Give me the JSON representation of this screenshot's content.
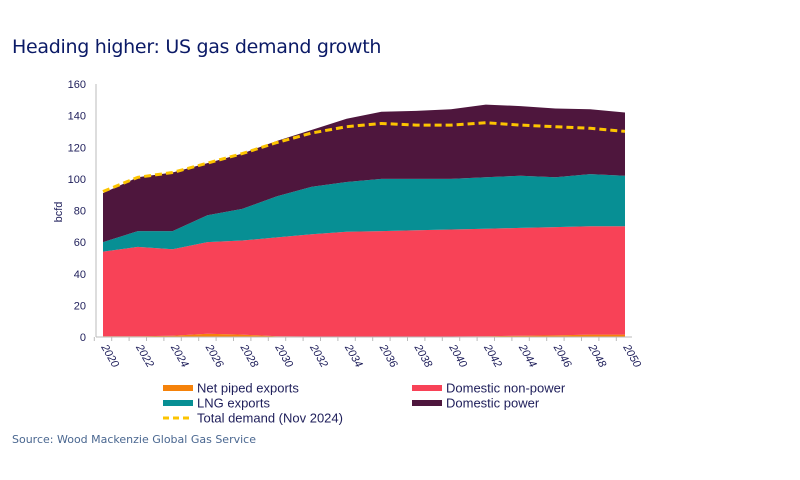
{
  "title": "Heading higher: US gas demand growth",
  "source": "Source: Wood Mackenzie Global Gas Service",
  "chart_data": {
    "type": "area",
    "stacked": true,
    "title": "Heading higher: US gas demand growth",
    "ylabel": "bcfd",
    "xlabel": "",
    "ylim": [
      0,
      160
    ],
    "yticks": [
      0,
      20,
      40,
      60,
      80,
      100,
      120,
      140,
      160
    ],
    "x": [
      2020,
      2022,
      2024,
      2026,
      2028,
      2030,
      2032,
      2034,
      2036,
      2038,
      2040,
      2042,
      2044,
      2046,
      2048,
      2050
    ],
    "xtick_labels": [
      "2020",
      "2022",
      "2024",
      "2026",
      "2028",
      "2030",
      "2032",
      "2034",
      "2036",
      "2038",
      "2040",
      "2042",
      "2044",
      "2046",
      "2048",
      "2050"
    ],
    "grid": false,
    "legend_position": "bottom",
    "series": [
      {
        "name": "Net piped exports",
        "color": "#f5820a",
        "values": [
          0.5,
          0.5,
          0.8,
          2,
          1.5,
          0.5,
          0.3,
          0.3,
          0.3,
          0.3,
          0.3,
          0.5,
          0.8,
          1,
          1.5,
          1.5
        ]
      },
      {
        "name": "Domestic non-power",
        "color": "#f84257",
        "values": [
          53.5,
          56.5,
          54.7,
          58,
          59.5,
          62.5,
          64.7,
          66.2,
          66.7,
          67.2,
          67.7,
          68,
          68.2,
          68.5,
          68.5,
          68.5
        ]
      },
      {
        "name": "LNG exports",
        "color": "#078f94",
        "values": [
          6,
          10,
          11.5,
          17,
          20,
          26,
          30,
          31.5,
          33,
          32.5,
          32,
          32.5,
          33,
          31.5,
          33,
          32
        ]
      },
      {
        "name": "Domestic power",
        "color": "#4e163d",
        "values": [
          31,
          34,
          37,
          33,
          35,
          35,
          36,
          40,
          42.5,
          43,
          44,
          46,
          44,
          43.5,
          41,
          40
        ]
      }
    ],
    "line": {
      "name": "Total demand (Nov 2024)",
      "color": "#fcc400",
      "style": "dashed",
      "values": [
        92,
        101,
        104,
        110,
        116,
        123,
        129,
        133,
        135,
        134,
        134,
        135.5,
        134,
        133,
        132,
        130
      ]
    }
  }
}
